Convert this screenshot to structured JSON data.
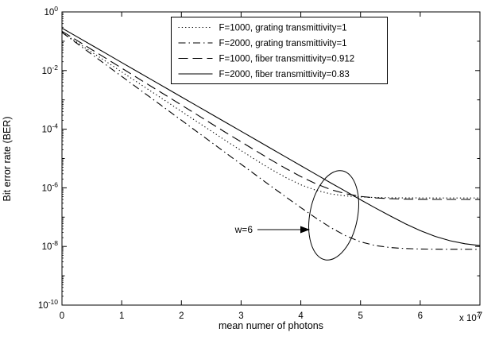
{
  "figure": {
    "background": "#ffffff",
    "line_color": "#000000"
  },
  "chart_data": {
    "type": "line",
    "title": "",
    "xlabel": "mean numer of photons",
    "ylabel": "Bit error rate (BER)",
    "x_multiplier_base": "x 10",
    "x_multiplier_exp": "7",
    "xlim": [
      0,
      7
    ],
    "y_scale": "log",
    "ylim_exp": [
      0,
      -10
    ],
    "x_ticks": [
      0,
      1,
      2,
      3,
      4,
      5,
      6,
      7
    ],
    "y_tick_base": "10",
    "y_tick_exponents": [
      0,
      -2,
      -4,
      -6,
      -8,
      -10
    ],
    "grid": false,
    "legend_position": "top-center",
    "x": [
      0,
      0.25,
      0.5,
      0.75,
      1,
      1.25,
      1.5,
      1.75,
      2,
      2.25,
      2.5,
      2.75,
      3,
      3.25,
      3.5,
      3.75,
      4,
      4.25,
      4.5,
      4.75,
      5,
      5.25,
      5.5,
      5.75,
      6,
      6.25,
      6.5,
      6.75,
      7
    ],
    "series": [
      {
        "name": "F=1000, grating transmittivity=1",
        "linestyle": "dotted",
        "values": [
          0.2,
          0.0921,
          0.0424,
          0.0196,
          0.00901,
          0.00415,
          0.00191,
          0.00088,
          0.000405,
          0.000187,
          8.59e-05,
          3.96e-05,
          1.87e-05,
          8.84e-06,
          4.32e-06,
          2.23e-06,
          1.27e-06,
          8.28e-07,
          6.24e-07,
          5.3e-07,
          4.87e-07,
          4.67e-07,
          4.58e-07,
          4.54e-07,
          4.52e-07,
          4.51e-07,
          4.5e-07,
          4.5e-07,
          4.5e-07
        ]
      },
      {
        "name": "F=2000, grating transmittivity=1",
        "linestyle": "dashdot",
        "values": [
          0.2,
          0.0844,
          0.0356,
          0.015,
          0.00635,
          0.00268,
          0.00113,
          0.000478,
          0.000202,
          8.51e-05,
          3.59e-05,
          1.52e-05,
          6.4e-06,
          2.7e-06,
          1.14e-06,
          4.89e-07,
          2.11e-07,
          9.37e-08,
          4.42e-08,
          2.33e-08,
          1.44e-08,
          1.07e-08,
          9.15e-09,
          8.49e-09,
          8.21e-09,
          8.09e-09,
          8.04e-09,
          8.02e-09,
          8.01e-09
        ]
      },
      {
        "name": "F=1000, fiber transmittivity=0.912",
        "linestyle": "dashed",
        "values": [
          0.22,
          0.107,
          0.0516,
          0.025,
          0.0121,
          0.00586,
          0.00284,
          0.00138,
          0.000666,
          0.000323,
          0.000156,
          7.57e-05,
          3.71e-05,
          1.82e-05,
          9e-06,
          4.56e-06,
          2.42e-06,
          1.38e-06,
          8.73e-07,
          6.29e-07,
          5.11e-07,
          4.54e-07,
          4.26e-07,
          4.13e-07,
          4.06e-07,
          4.03e-07,
          4.01e-07,
          4.01e-07,
          4e-07
        ]
      },
      {
        "name": "F=2000, fiber transmittivity=0.83",
        "linestyle": "solid",
        "values": [
          0.28,
          0.143,
          0.0726,
          0.037,
          0.0188,
          0.00958,
          0.00488,
          0.00248,
          0.00126,
          0.000644,
          0.000328,
          0.000167,
          8.5e-05,
          4.33e-05,
          2.2e-05,
          1.12e-05,
          5.71e-06,
          2.91e-06,
          1.48e-06,
          7.63e-07,
          3.93e-07,
          2.05e-07,
          1.09e-07,
          5.97e-08,
          3.48e-08,
          2.21e-08,
          1.57e-08,
          1.24e-08,
          1.07e-08
        ]
      }
    ],
    "annotation": {
      "text": "w=6"
    }
  }
}
